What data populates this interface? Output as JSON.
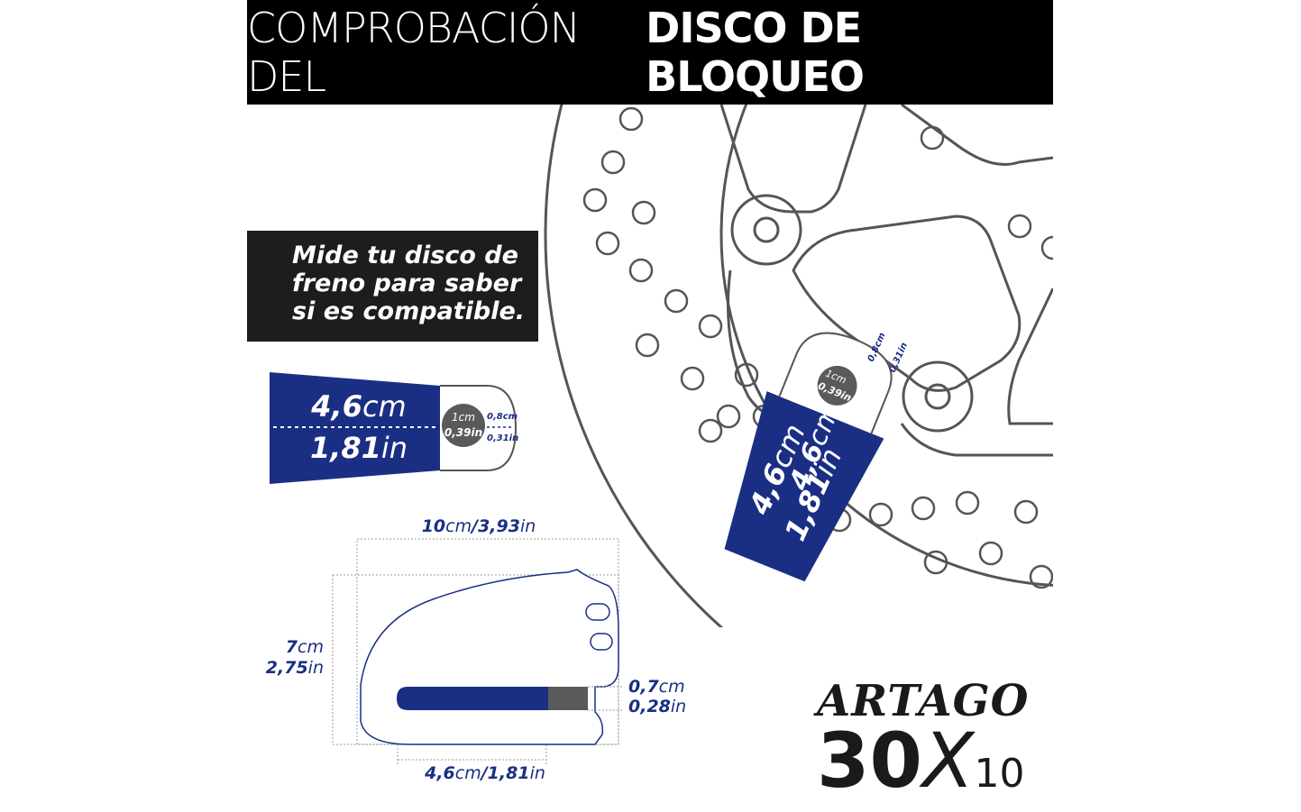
{
  "header": {
    "title_light": "COMPROBACIÓN DEL",
    "title_bold": "DISCO DE BLOQUEO"
  },
  "callout": {
    "lines": [
      "Mide tu disco de",
      "freno para saber",
      "si es compatible."
    ]
  },
  "lock_head": {
    "depth_cm": "4,6",
    "depth_cm_unit": "cm",
    "depth_in": "1,81",
    "depth_in_unit": "in",
    "pin_cm": "1cm",
    "pin_in": "0,39in",
    "gap_cm": "0,8cm",
    "gap_in": "0,31in"
  },
  "dimensions": {
    "width_value": "10",
    "width_unit": "cm",
    "width_sep": "/3,93",
    "width_unit2": "in",
    "height_cm": "7",
    "height_cm_unit": "cm",
    "height_in": "2,75",
    "height_in_unit": "in",
    "slot_cm": "0,7",
    "slot_cm_unit": "cm",
    "slot_in": "0,28",
    "slot_in_unit": "in",
    "slot_depth": "4,6",
    "slot_depth_unit": "cm",
    "slot_depth_sep": "/1,81",
    "slot_depth_unit2": "in"
  },
  "brand": {
    "name": "ARTAGO",
    "model_num": "30",
    "model_x": "X",
    "model_sub": "10"
  },
  "colors": {
    "navy": "#1a2f84",
    "black": "#000000",
    "gray_pin": "#5a5a5a",
    "outline": "#555555"
  }
}
